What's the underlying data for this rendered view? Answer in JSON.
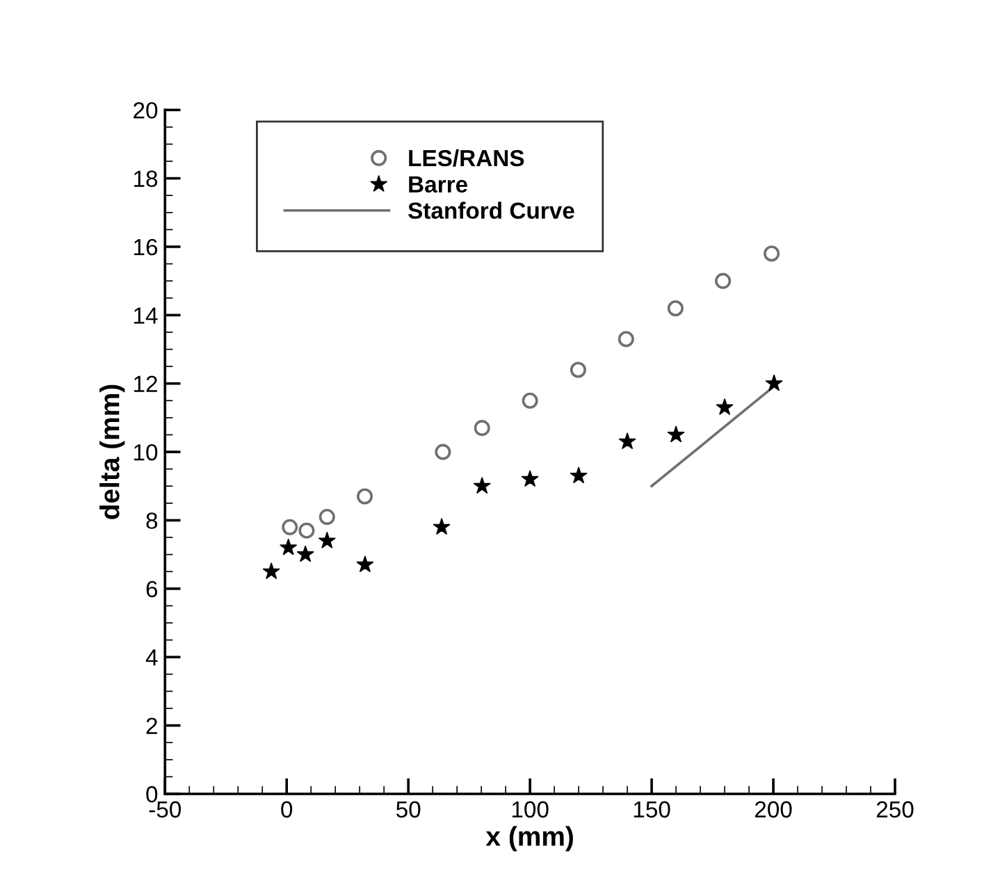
{
  "chart_data": {
    "type": "scatter",
    "xlabel": "x (mm)",
    "ylabel": "delta (mm)",
    "xlim": [
      -50,
      250
    ],
    "ylim": [
      0,
      20
    ],
    "xticks": [
      -50,
      0,
      50,
      100,
      150,
      200,
      250
    ],
    "yticks": [
      0,
      2,
      4,
      6,
      8,
      10,
      12,
      14,
      16,
      18,
      20
    ],
    "grid": false,
    "legend": "top left",
    "series": [
      {
        "name": "LES/RANS",
        "marker": "circle",
        "color": "#707070",
        "x": [
          1.3,
          8.2,
          16.6,
          32.1,
          64.2,
          80.3,
          100,
          119.8,
          139.5,
          159.8,
          179.3,
          199.3
        ],
        "values": [
          7.8,
          7.7,
          8.1,
          8.7,
          10.0,
          10.7,
          11.5,
          12.4,
          13.3,
          14.2,
          15.0,
          15.8
        ]
      },
      {
        "name": "Barre",
        "marker": "star",
        "color": "#000000",
        "x": [
          -6.3,
          0.7,
          7.7,
          16.6,
          32.2,
          63.7,
          80.3,
          100,
          120,
          140,
          160,
          180,
          200.3
        ],
        "values": [
          6.5,
          7.2,
          7.0,
          7.4,
          6.7,
          7.8,
          9.0,
          9.2,
          9.3,
          10.3,
          10.5,
          11.3,
          12.0
        ]
      },
      {
        "name": "Stanford Curve",
        "type": "line",
        "marker": "none",
        "line_style": "solid",
        "color": "#707070",
        "x": [
          150,
          200
        ],
        "values": [
          9.0,
          11.9
        ]
      }
    ]
  }
}
